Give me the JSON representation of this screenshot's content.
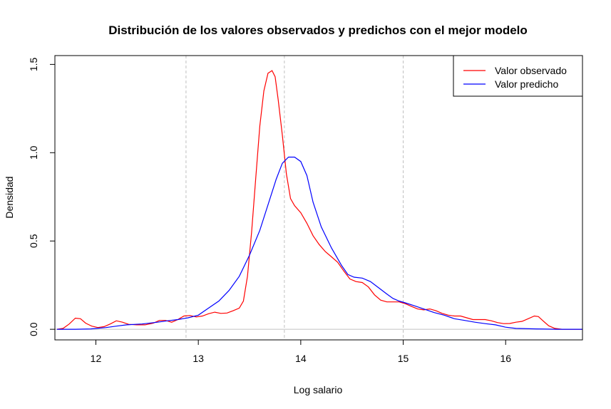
{
  "chart_data": {
    "type": "line",
    "title": "Distribución de los valores observados y predichos con el mejor modelo",
    "xlabel": "Log salario",
    "ylabel": "Densidad",
    "xlim": [
      11.6,
      16.75
    ],
    "ylim": [
      -0.06,
      1.55
    ],
    "xticks": [
      12,
      13,
      14,
      15,
      16
    ],
    "xtick_labels": [
      "12",
      "13",
      "14",
      "15",
      "16"
    ],
    "yticks": [
      0.0,
      0.5,
      1.0,
      1.5
    ],
    "ytick_labels": [
      "0.0",
      "0.5",
      "1.0",
      "1.5"
    ],
    "hline": 0,
    "vlines": [
      12.88,
      13.84,
      15.0
    ],
    "legend_position": "top-right",
    "series": [
      {
        "name": "Valor observado",
        "color": "#ff0000",
        "points": [
          [
            11.62,
            0.0
          ],
          [
            11.68,
            0.005
          ],
          [
            11.74,
            0.03
          ],
          [
            11.8,
            0.063
          ],
          [
            11.85,
            0.06
          ],
          [
            11.9,
            0.035
          ],
          [
            11.96,
            0.018
          ],
          [
            12.02,
            0.01
          ],
          [
            12.08,
            0.015
          ],
          [
            12.14,
            0.03
          ],
          [
            12.2,
            0.048
          ],
          [
            12.26,
            0.04
          ],
          [
            12.32,
            0.028
          ],
          [
            12.4,
            0.025
          ],
          [
            12.48,
            0.025
          ],
          [
            12.56,
            0.035
          ],
          [
            12.62,
            0.05
          ],
          [
            12.68,
            0.05
          ],
          [
            12.74,
            0.04
          ],
          [
            12.8,
            0.055
          ],
          [
            12.86,
            0.075
          ],
          [
            12.92,
            0.078
          ],
          [
            12.98,
            0.07
          ],
          [
            13.04,
            0.075
          ],
          [
            13.1,
            0.088
          ],
          [
            13.16,
            0.097
          ],
          [
            13.22,
            0.09
          ],
          [
            13.28,
            0.092
          ],
          [
            13.34,
            0.105
          ],
          [
            13.4,
            0.12
          ],
          [
            13.44,
            0.16
          ],
          [
            13.48,
            0.3
          ],
          [
            13.52,
            0.55
          ],
          [
            13.56,
            0.85
          ],
          [
            13.6,
            1.15
          ],
          [
            13.64,
            1.35
          ],
          [
            13.68,
            1.45
          ],
          [
            13.72,
            1.465
          ],
          [
            13.75,
            1.43
          ],
          [
            13.78,
            1.3
          ],
          [
            13.82,
            1.1
          ],
          [
            13.86,
            0.88
          ],
          [
            13.9,
            0.74
          ],
          [
            13.94,
            0.7
          ],
          [
            14.0,
            0.66
          ],
          [
            14.06,
            0.6
          ],
          [
            14.12,
            0.53
          ],
          [
            14.18,
            0.48
          ],
          [
            14.24,
            0.44
          ],
          [
            14.3,
            0.41
          ],
          [
            14.36,
            0.38
          ],
          [
            14.42,
            0.33
          ],
          [
            14.48,
            0.285
          ],
          [
            14.54,
            0.27
          ],
          [
            14.6,
            0.265
          ],
          [
            14.66,
            0.24
          ],
          [
            14.72,
            0.195
          ],
          [
            14.78,
            0.165
          ],
          [
            14.84,
            0.155
          ],
          [
            14.9,
            0.155
          ],
          [
            14.96,
            0.155
          ],
          [
            15.02,
            0.145
          ],
          [
            15.08,
            0.13
          ],
          [
            15.14,
            0.115
          ],
          [
            15.2,
            0.11
          ],
          [
            15.26,
            0.115
          ],
          [
            15.32,
            0.105
          ],
          [
            15.38,
            0.09
          ],
          [
            15.44,
            0.08
          ],
          [
            15.5,
            0.075
          ],
          [
            15.56,
            0.075
          ],
          [
            15.62,
            0.065
          ],
          [
            15.68,
            0.055
          ],
          [
            15.74,
            0.055
          ],
          [
            15.8,
            0.055
          ],
          [
            15.86,
            0.048
          ],
          [
            15.92,
            0.038
          ],
          [
            15.98,
            0.032
          ],
          [
            16.04,
            0.033
          ],
          [
            16.1,
            0.04
          ],
          [
            16.16,
            0.045
          ],
          [
            16.22,
            0.06
          ],
          [
            16.28,
            0.075
          ],
          [
            16.32,
            0.072
          ],
          [
            16.36,
            0.05
          ],
          [
            16.42,
            0.02
          ],
          [
            16.48,
            0.005
          ],
          [
            16.55,
            0.0
          ],
          [
            16.75,
            0.0
          ]
        ]
      },
      {
        "name": "Valor predicho",
        "color": "#0000ff",
        "points": [
          [
            11.62,
            0.0
          ],
          [
            11.8,
            0.0
          ],
          [
            11.95,
            0.002
          ],
          [
            12.1,
            0.01
          ],
          [
            12.2,
            0.018
          ],
          [
            12.3,
            0.025
          ],
          [
            12.45,
            0.03
          ],
          [
            12.6,
            0.04
          ],
          [
            12.7,
            0.048
          ],
          [
            12.8,
            0.055
          ],
          [
            12.9,
            0.065
          ],
          [
            13.0,
            0.08
          ],
          [
            13.1,
            0.12
          ],
          [
            13.2,
            0.16
          ],
          [
            13.3,
            0.22
          ],
          [
            13.4,
            0.3
          ],
          [
            13.5,
            0.42
          ],
          [
            13.6,
            0.56
          ],
          [
            13.7,
            0.74
          ],
          [
            13.76,
            0.85
          ],
          [
            13.82,
            0.94
          ],
          [
            13.88,
            0.975
          ],
          [
            13.94,
            0.975
          ],
          [
            14.0,
            0.95
          ],
          [
            14.06,
            0.87
          ],
          [
            14.12,
            0.72
          ],
          [
            14.2,
            0.58
          ],
          [
            14.3,
            0.46
          ],
          [
            14.4,
            0.36
          ],
          [
            14.46,
            0.31
          ],
          [
            14.52,
            0.295
          ],
          [
            14.6,
            0.29
          ],
          [
            14.68,
            0.27
          ],
          [
            14.76,
            0.235
          ],
          [
            14.84,
            0.2
          ],
          [
            14.9,
            0.175
          ],
          [
            14.96,
            0.16
          ],
          [
            15.02,
            0.15
          ],
          [
            15.1,
            0.135
          ],
          [
            15.2,
            0.115
          ],
          [
            15.3,
            0.095
          ],
          [
            15.4,
            0.08
          ],
          [
            15.5,
            0.06
          ],
          [
            15.6,
            0.05
          ],
          [
            15.7,
            0.04
          ],
          [
            15.8,
            0.032
          ],
          [
            15.9,
            0.025
          ],
          [
            16.0,
            0.012
          ],
          [
            16.1,
            0.005
          ],
          [
            16.3,
            0.002
          ],
          [
            16.5,
            0.0
          ],
          [
            16.75,
            0.0
          ]
        ]
      }
    ]
  }
}
